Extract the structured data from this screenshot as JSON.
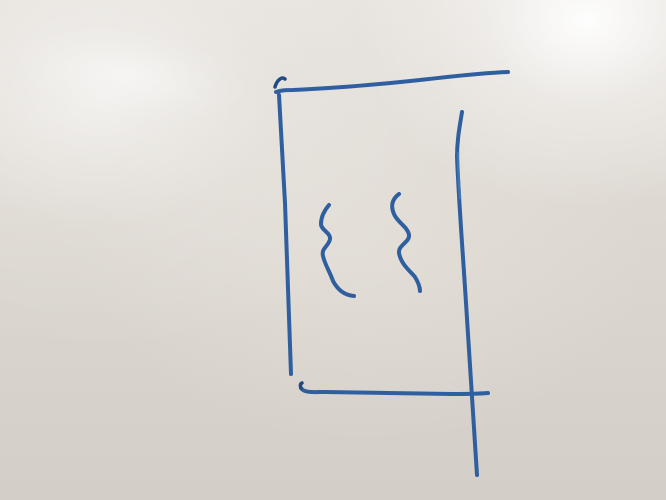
{
  "scene": {
    "type": "whiteboard sketch",
    "ink_color": "#2f5f9f",
    "surface_color": "#ddd8d1",
    "glare_color": "#ffffff",
    "drawing_elements": [
      "top-line",
      "left-vertical-line",
      "right-vertical-line",
      "bottom-line",
      "left-squiggle",
      "right-squiggle"
    ]
  }
}
